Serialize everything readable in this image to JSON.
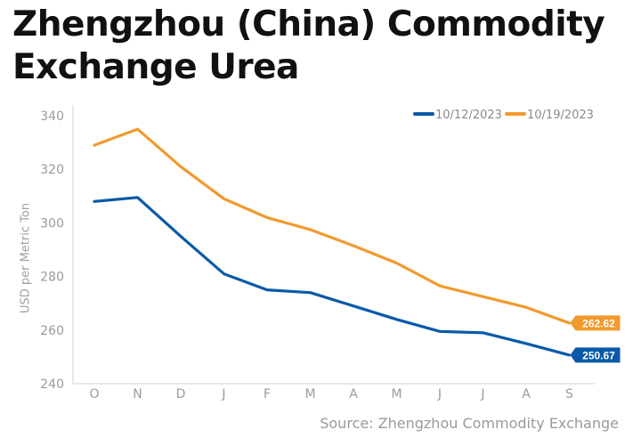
{
  "title_lines": [
    "Zhengzhou (China) Commodity",
    "Exchange Urea"
  ],
  "source": "Source: Zhengzhou Commodity Exchange",
  "chart_data": {
    "type": "line",
    "title": "Zhengzhou (China) Commodity Exchange Urea",
    "ylabel": "USD per Metric Ton",
    "xlabel": "",
    "categories": [
      "O",
      "N",
      "D",
      "J",
      "F",
      "M",
      "A",
      "M",
      "J",
      "J",
      "A",
      "S"
    ],
    "ylim": [
      240,
      340
    ],
    "yticks": [
      240,
      260,
      280,
      300,
      320,
      340
    ],
    "grid": false,
    "legend_position": "top-right",
    "series": [
      {
        "name": "10/12/2023",
        "color": "#0a5aa8",
        "values": [
          308,
          309.5,
          295,
          281,
          275,
          274,
          269,
          264,
          259.5,
          259,
          255,
          250.67
        ],
        "end_label": "250.67"
      },
      {
        "name": "10/19/2023",
        "color": "#f29a2e",
        "values": [
          329,
          335,
          321,
          309,
          302,
          297.5,
          291.5,
          285,
          276.5,
          272.5,
          268.5,
          262.62
        ],
        "end_label": "262.62"
      }
    ]
  }
}
